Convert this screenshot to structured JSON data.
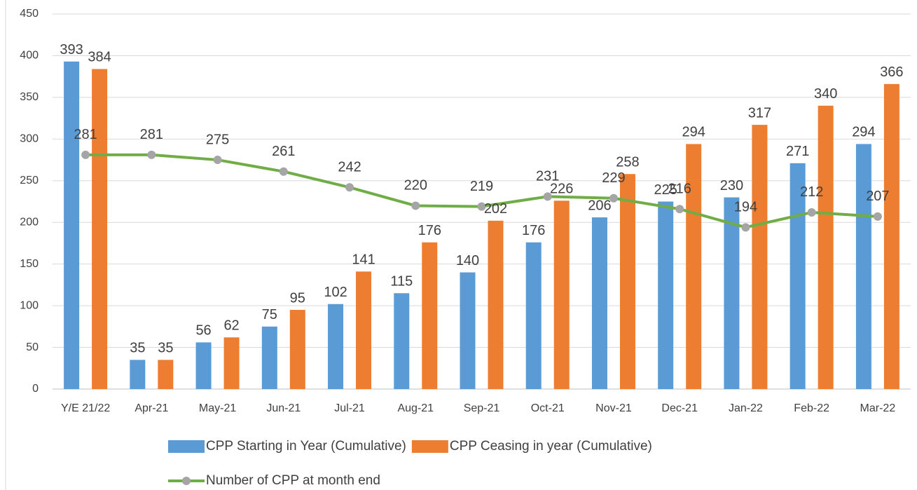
{
  "chart_data": {
    "type": "bar",
    "categories": [
      "Y/E 21/22",
      "Apr-21",
      "May-21",
      "Jun-21",
      "Jul-21",
      "Aug-21",
      "Sep-21",
      "Oct-21",
      "Nov-21",
      "Dec-21",
      "Jan-22",
      "Feb-22",
      "Mar-22"
    ],
    "series": [
      {
        "name": "CPP Starting in Year (Cumulative)",
        "type": "bar",
        "color": "#5b9bd5",
        "values": [
          393,
          35,
          56,
          75,
          102,
          115,
          140,
          176,
          206,
          225,
          230,
          271,
          294
        ]
      },
      {
        "name": "CPP Ceasing in year (Cumulative)",
        "type": "bar",
        "color": "#ed7d31",
        "values": [
          384,
          35,
          62,
          95,
          141,
          176,
          202,
          226,
          258,
          294,
          317,
          340,
          366
        ]
      },
      {
        "name": "Number of CPP at month end",
        "type": "line",
        "color": "#70ad47",
        "marker_color": "#a5a5a5",
        "values": [
          281,
          281,
          275,
          261,
          242,
          220,
          219,
          231,
          229,
          216,
          194,
          212,
          207
        ]
      }
    ],
    "ylim": [
      0,
      450
    ],
    "yticks": [
      0,
      50,
      100,
      150,
      200,
      250,
      300,
      350,
      400,
      450
    ],
    "grid": true,
    "legend": "bottom"
  }
}
